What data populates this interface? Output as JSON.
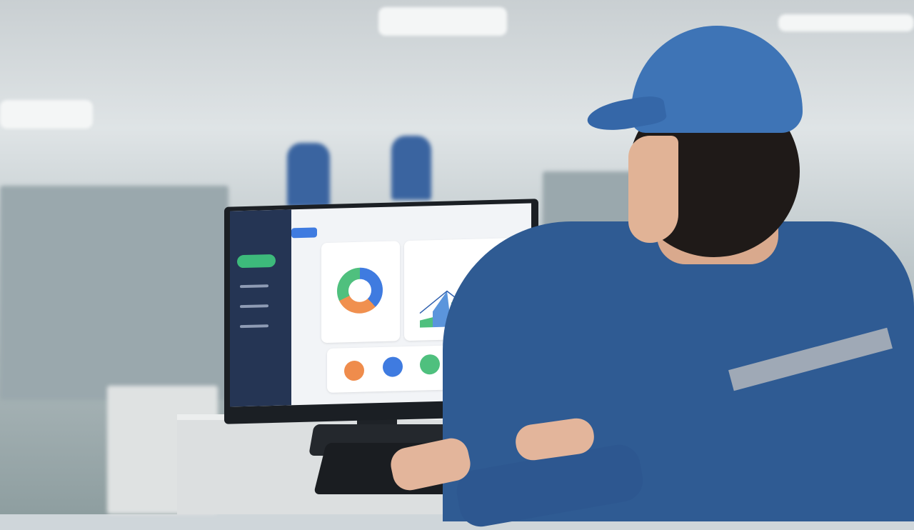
{
  "scene": {
    "description_label": "",
    "colors": {
      "uniform": "#2f5b93",
      "cap": "#3e74b6",
      "sidebar": "#253554",
      "accent_green": "#3dba7b",
      "accent_blue": "#3f7be0",
      "accent_orange": "#f0904f"
    }
  },
  "dashboard": {
    "donut_segments": [
      {
        "color": "#3f7be0",
        "share": 0.38
      },
      {
        "color": "#f0904f",
        "share": 0.3
      },
      {
        "color": "#4fc07e",
        "share": 0.32
      }
    ],
    "status_icons": [
      "orange-status-icon",
      "blue-status-icon",
      "green-status-icon",
      "blue-shield-icon"
    ]
  }
}
